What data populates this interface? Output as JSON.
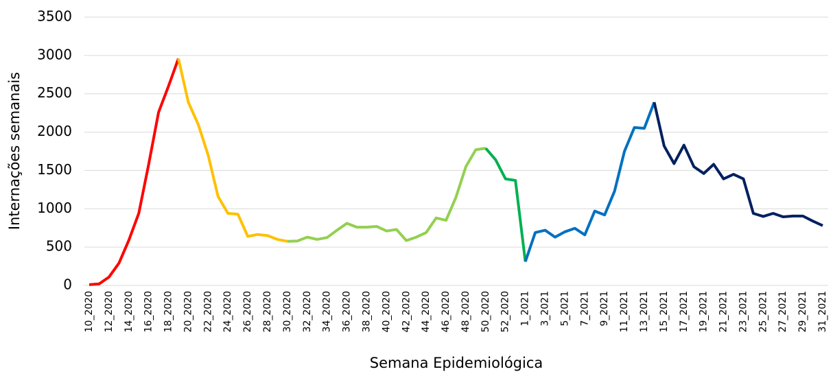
{
  "chart_data": {
    "type": "line",
    "x_label": "Semana Epidemiológica",
    "y_label": "Internações semanais",
    "categories": [
      "10_2020",
      null,
      "12_2020",
      null,
      "14_2020",
      null,
      "16_2020",
      null,
      "18_2020",
      null,
      "20_2020",
      null,
      "22_2020",
      null,
      "24_2020",
      null,
      "26_2020",
      null,
      "28_2020",
      null,
      "30_2020",
      null,
      "32_2020",
      null,
      "34_2020",
      null,
      "36_2020",
      null,
      "38_2020",
      null,
      "40_2020",
      null,
      "42_2020",
      null,
      "44_2020",
      null,
      "46_2020",
      null,
      "48_2020",
      null,
      "50_2020",
      null,
      "52_2020",
      null,
      "1_2021",
      null,
      "3_2021",
      null,
      "5_2021",
      null,
      "7_2021",
      null,
      "9_2021",
      null,
      "11_2021",
      null,
      "13_2021",
      null,
      "15_2021",
      null,
      "17_2021",
      null,
      "19_2021",
      null,
      "21_2021",
      null,
      "23_2021",
      null,
      "25_2021",
      null,
      "27_2021",
      null,
      "29_2021",
      null,
      "31_2021"
    ],
    "series": [
      {
        "color": "#ff0000",
        "values": [
          10,
          20,
          110,
          290,
          590,
          940,
          1580,
          2260,
          2600,
          2960,
          null,
          null,
          null,
          null,
          null,
          null,
          null,
          null,
          null,
          null,
          null,
          null,
          null,
          null,
          null,
          null,
          null,
          null,
          null,
          null,
          null,
          null,
          null,
          null,
          null,
          null,
          null,
          null,
          null,
          null,
          null,
          null,
          null,
          null,
          null,
          null,
          null,
          null,
          null,
          null,
          null,
          null,
          null,
          null,
          null,
          null,
          null,
          null,
          null,
          null,
          null,
          null,
          null,
          null,
          null,
          null,
          null,
          null,
          null,
          null,
          null,
          null,
          null,
          null,
          null
        ]
      },
      {
        "color": "#ffc000",
        "values": [
          null,
          null,
          null,
          null,
          null,
          null,
          null,
          null,
          null,
          2960,
          2390,
          2100,
          1700,
          1160,
          940,
          930,
          640,
          665,
          650,
          600,
          575,
          null,
          null,
          null,
          null,
          null,
          null,
          null,
          null,
          null,
          null,
          null,
          null,
          null,
          null,
          null,
          null,
          null,
          null,
          null,
          null,
          null,
          null,
          null,
          null,
          null,
          null,
          null,
          null,
          null,
          null,
          null,
          null,
          null,
          null,
          null,
          null,
          null,
          null,
          null,
          null,
          null,
          null,
          null,
          null,
          null,
          null,
          null,
          null,
          null,
          null,
          null,
          null,
          null,
          null
        ]
      },
      {
        "color": "#92d050",
        "values": [
          null,
          null,
          null,
          null,
          null,
          null,
          null,
          null,
          null,
          null,
          null,
          null,
          null,
          null,
          null,
          null,
          null,
          null,
          null,
          null,
          575,
          580,
          630,
          600,
          625,
          720,
          810,
          760,
          760,
          770,
          710,
          730,
          585,
          630,
          690,
          880,
          850,
          1150,
          1550,
          1770,
          1790,
          null,
          null,
          null,
          null,
          null,
          null,
          null,
          null,
          null,
          null,
          null,
          null,
          null,
          null,
          null,
          null,
          null,
          null,
          null,
          null,
          null,
          null,
          null,
          null,
          null,
          null,
          null,
          null,
          null,
          null,
          null,
          null,
          null,
          null
        ]
      },
      {
        "color": "#00b050",
        "values": [
          null,
          null,
          null,
          null,
          null,
          null,
          null,
          null,
          null,
          null,
          null,
          null,
          null,
          null,
          null,
          null,
          null,
          null,
          null,
          null,
          null,
          null,
          null,
          null,
          null,
          null,
          null,
          null,
          null,
          null,
          null,
          null,
          null,
          null,
          null,
          null,
          null,
          null,
          null,
          null,
          1790,
          1640,
          1390,
          1370,
          310,
          null,
          null,
          null,
          null,
          null,
          null,
          null,
          null,
          null,
          null,
          null,
          null,
          null,
          null,
          null,
          null,
          null,
          null,
          null,
          null,
          null,
          null,
          null,
          null,
          null,
          null,
          null,
          null,
          null,
          null
        ]
      },
      {
        "color": "#0070c0",
        "values": [
          null,
          null,
          null,
          null,
          null,
          null,
          null,
          null,
          null,
          null,
          null,
          null,
          null,
          null,
          null,
          null,
          null,
          null,
          null,
          null,
          null,
          null,
          null,
          null,
          null,
          null,
          null,
          null,
          null,
          null,
          null,
          null,
          null,
          null,
          null,
          null,
          null,
          null,
          null,
          null,
          null,
          null,
          null,
          null,
          310,
          690,
          720,
          630,
          700,
          745,
          660,
          970,
          920,
          1230,
          1750,
          2060,
          2050,
          2390,
          null,
          null,
          null,
          null,
          null,
          null,
          null,
          null,
          null,
          null,
          null,
          null,
          null,
          null,
          null,
          null,
          null
        ]
      },
      {
        "color": "#002060",
        "values": [
          null,
          null,
          null,
          null,
          null,
          null,
          null,
          null,
          null,
          null,
          null,
          null,
          null,
          null,
          null,
          null,
          null,
          null,
          null,
          null,
          null,
          null,
          null,
          null,
          null,
          null,
          null,
          null,
          null,
          null,
          null,
          null,
          null,
          null,
          null,
          null,
          null,
          null,
          null,
          null,
          null,
          null,
          null,
          null,
          null,
          null,
          null,
          null,
          null,
          null,
          null,
          null,
          null,
          null,
          null,
          null,
          null,
          2390,
          1820,
          1590,
          1830,
          1550,
          1460,
          1580,
          1390,
          1450,
          1390,
          940,
          900,
          940,
          895,
          905,
          905,
          840,
          780
        ]
      }
    ],
    "ylim": [
      0,
      3500
    ],
    "yticks": [
      0,
      500,
      1000,
      1500,
      2000,
      2500,
      3000,
      3500
    ],
    "grid": true
  }
}
